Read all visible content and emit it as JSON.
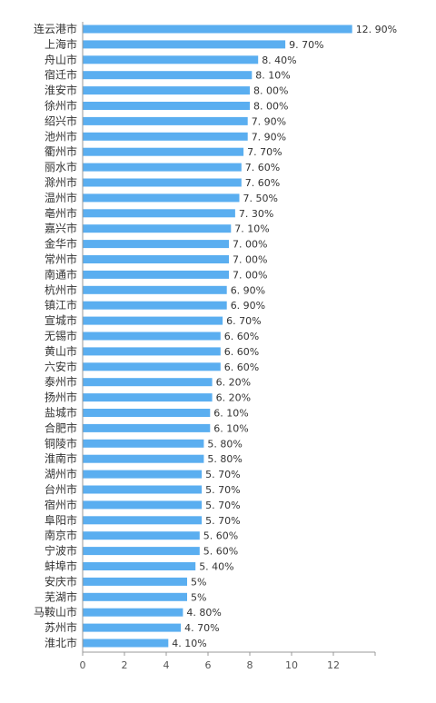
{
  "chart_data": {
    "type": "bar",
    "orientation": "horizontal",
    "categories": [
      "连云港市",
      "上海市",
      "舟山市",
      "宿迁市",
      "淮安市",
      "徐州市",
      "绍兴市",
      "池州市",
      "衢州市",
      "丽水市",
      "滁州市",
      "温州市",
      "亳州市",
      "嘉兴市",
      "金华市",
      "常州市",
      "南通市",
      "杭州市",
      "镇江市",
      "宣城市",
      "无锡市",
      "黄山市",
      "六安市",
      "泰州市",
      "扬州市",
      "盐城市",
      "合肥市",
      "铜陵市",
      "淮南市",
      "湖州市",
      "台州市",
      "宿州市",
      "阜阳市",
      "南京市",
      "宁波市",
      "蚌埠市",
      "安庆市",
      "芜湖市",
      "马鞍山市",
      "苏州市",
      "淮北市"
    ],
    "values": [
      12.9,
      9.7,
      8.4,
      8.1,
      8.0,
      8.0,
      7.9,
      7.9,
      7.7,
      7.6,
      7.6,
      7.5,
      7.3,
      7.1,
      7.0,
      7.0,
      7.0,
      6.9,
      6.9,
      6.7,
      6.6,
      6.6,
      6.6,
      6.2,
      6.2,
      6.1,
      6.1,
      5.8,
      5.8,
      5.7,
      5.7,
      5.7,
      5.7,
      5.6,
      5.6,
      5.4,
      5.0,
      5.0,
      4.8,
      4.7,
      4.1
    ],
    "value_labels": [
      "12. 90%",
      "9. 70%",
      "8. 40%",
      "8. 10%",
      "8. 00%",
      "8. 00%",
      "7. 90%",
      "7. 90%",
      "7. 70%",
      "7. 60%",
      "7. 60%",
      "7. 50%",
      "7. 30%",
      "7. 10%",
      "7. 00%",
      "7. 00%",
      "7. 00%",
      "6. 90%",
      "6. 90%",
      "6. 70%",
      "6. 60%",
      "6. 60%",
      "6. 60%",
      "6. 20%",
      "6. 20%",
      "6. 10%",
      "6. 10%",
      "5. 80%",
      "5. 80%",
      "5. 70%",
      "5. 70%",
      "5. 70%",
      "5. 70%",
      "5. 60%",
      "5. 60%",
      "5. 40%",
      "5%",
      "5%",
      "4. 80%",
      "4. 70%",
      "4. 10%"
    ],
    "x_ticks": [
      "0",
      "2",
      "4",
      "6",
      "8",
      "10",
      "12"
    ],
    "xlim": [
      0,
      14
    ],
    "title": "",
    "xlabel": "",
    "ylabel": "",
    "grid": false,
    "colors": {
      "bar": "#5aaef0",
      "axis": "#999999",
      "text": "#333333"
    }
  }
}
